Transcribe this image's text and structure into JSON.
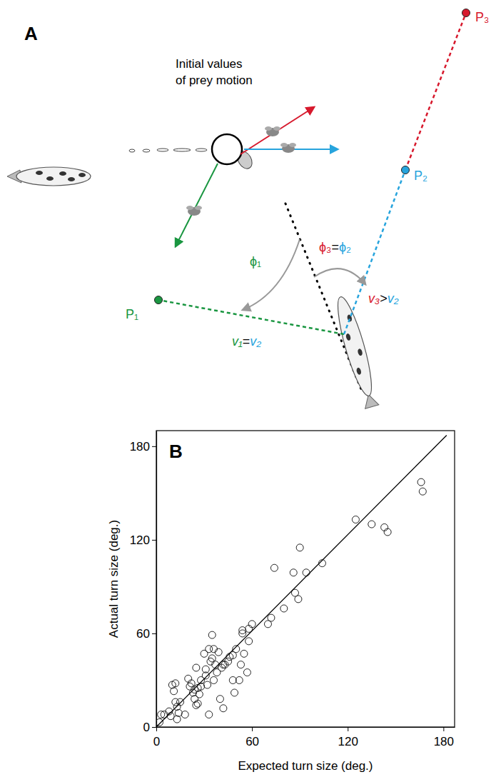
{
  "diagram": {
    "panel_letter": "A",
    "caption": [
      "Initial values",
      "of prey motion"
    ],
    "points": [
      {
        "label": "P₁",
        "color": "#1a9641"
      },
      {
        "label": "P₂",
        "color": "#27a4dd"
      },
      {
        "label": "P₃",
        "color": "#d7192d"
      }
    ],
    "angle_labels": [
      [
        {
          "text": "ϕ₁",
          "color": "#1a9641"
        }
      ],
      [
        {
          "text": "ϕ₃",
          "color": "#d7192d"
        },
        {
          "text": "=",
          "color": "#000000"
        },
        {
          "text": "ϕ₂",
          "color": "#27a4dd"
        }
      ]
    ],
    "speed_labels": [
      [
        {
          "text": "v₁",
          "color": "#1a9641"
        },
        {
          "text": "=",
          "color": "#000000"
        },
        {
          "text": "v₂",
          "color": "#27a4dd"
        }
      ],
      [
        {
          "text": "v₃",
          "color": "#d7192d"
        },
        {
          "text": ">",
          "color": "#000000"
        },
        {
          "text": "v₂",
          "color": "#27a4dd"
        }
      ]
    ]
  },
  "chart_data": {
    "type": "scatter",
    "panel_label": "B",
    "x_label": "Expected turn size (deg.)",
    "y_label": "Actual turn size (deg.)",
    "xlim": [
      0,
      187
    ],
    "ylim": [
      0,
      190
    ],
    "xticks": [
      0,
      60,
      120,
      180
    ],
    "yticks": [
      0,
      60,
      120,
      180
    ],
    "series": [
      {
        "type": "scatter",
        "marker": "circle",
        "color": "#222222",
        "x": [
          2,
          3,
          5,
          8,
          9,
          10,
          11,
          12,
          12,
          13,
          13,
          14,
          15,
          18,
          20,
          21,
          22,
          23,
          24,
          24,
          25,
          25,
          26,
          26,
          27,
          28,
          28,
          30,
          31,
          31,
          32,
          33,
          33,
          34,
          35,
          35,
          36,
          36,
          37,
          38,
          39,
          40,
          41,
          42,
          42,
          43,
          45,
          46,
          48,
          48,
          49,
          50,
          52,
          53,
          54,
          54,
          55,
          57,
          58,
          58,
          60,
          70,
          72,
          74,
          80,
          86,
          87,
          89,
          90,
          94,
          104,
          125,
          135,
          143,
          145,
          166,
          167
        ],
        "values": [
          3,
          8,
          8,
          10,
          7,
          27,
          23,
          28,
          16,
          13,
          5,
          9,
          16,
          8,
          31,
          26,
          28,
          22,
          24,
          18,
          38,
          14,
          15,
          25,
          21,
          30,
          26,
          47,
          33,
          37,
          27,
          50,
          8,
          42,
          59,
          44,
          50,
          30,
          40,
          35,
          48,
          18,
          38,
          12,
          40,
          40,
          42,
          45,
          46,
          30,
          22,
          50,
          30,
          40,
          62,
          60,
          47,
          35,
          63,
          55,
          66,
          66,
          70,
          102,
          76,
          99,
          86,
          82,
          115,
          99,
          105,
          133,
          130,
          128,
          125,
          157,
          151
        ]
      },
      {
        "type": "line",
        "line_style": "solid",
        "color": "#000000",
        "x": [
          0,
          182
        ],
        "values": [
          0,
          187
        ]
      }
    ]
  }
}
